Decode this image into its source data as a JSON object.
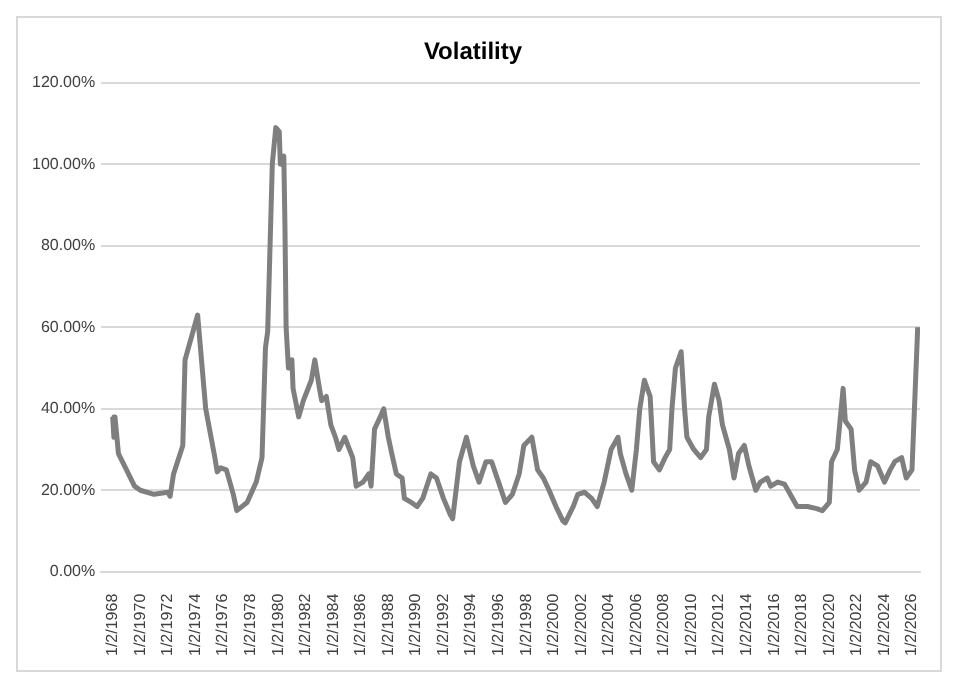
{
  "chart_data": {
    "type": "line",
    "title": "Volatility",
    "x": [
      "1968-01",
      "1968-02",
      "1968-03",
      "1968-06",
      "1969-01",
      "1969-08",
      "1970-01",
      "1971-01",
      "1972-01",
      "1972-03",
      "1972-06",
      "1973-02",
      "1973-04",
      "1974-03",
      "1974-10",
      "1975-06",
      "1975-08",
      "1975-11",
      "1976-04",
      "1976-10",
      "1977-01",
      "1977-10",
      "1978-06",
      "1978-11",
      "1979-02",
      "1979-04",
      "1979-08",
      "1979-11",
      "1980-02",
      "1980-03",
      "1980-06",
      "1980-07",
      "1980-08",
      "1980-10",
      "1981-01",
      "1981-02",
      "1981-07",
      "1981-11",
      "1982-06",
      "1982-09",
      "1983-01",
      "1983-03",
      "1983-07",
      "1983-11",
      "1984-03",
      "1984-06",
      "1984-11",
      "1985-06",
      "1985-09",
      "1986-03",
      "1986-08",
      "1986-10",
      "1987-01",
      "1987-06",
      "1987-09",
      "1988-01",
      "1988-04",
      "1988-08",
      "1989-01",
      "1989-03",
      "1989-09",
      "1990-02",
      "1990-07",
      "1991-02",
      "1991-07",
      "1992-01",
      "1992-07",
      "1992-09",
      "1993-03",
      "1993-09",
      "1994-03",
      "1994-08",
      "1995-02",
      "1995-07",
      "1996-01",
      "1996-07",
      "1997-01",
      "1997-07",
      "1997-11",
      "1998-06",
      "1998-11",
      "1999-04",
      "1999-09",
      "2000-03",
      "2000-09",
      "2000-11",
      "2001-06",
      "2001-10",
      "2002-04",
      "2002-10",
      "2003-03",
      "2003-09",
      "2004-03",
      "2004-09",
      "2004-11",
      "2005-04",
      "2005-09",
      "2006-01",
      "2006-04",
      "2006-08",
      "2007-01",
      "2007-04",
      "2007-09",
      "2008-02",
      "2008-06",
      "2008-08",
      "2008-11",
      "2009-04",
      "2009-07",
      "2009-09",
      "2010-03",
      "2010-09",
      "2011-02",
      "2011-04",
      "2011-09",
      "2012-01",
      "2012-04",
      "2012-10",
      "2013-02",
      "2013-06",
      "2013-11",
      "2014-03",
      "2014-09",
      "2015-01",
      "2015-07",
      "2015-10",
      "2016-04",
      "2016-10",
      "2017-03",
      "2017-09",
      "2018-06",
      "2019-02",
      "2019-07",
      "2020-01",
      "2020-03",
      "2020-08",
      "2021-01",
      "2021-03",
      "2021-08",
      "2021-11",
      "2022-03",
      "2022-09",
      "2023-01",
      "2023-07",
      "2024-01",
      "2024-06",
      "2024-10",
      "2025-04",
      "2025-08",
      "2026-01",
      "2026-06"
    ],
    "series": [
      {
        "color": "#7f7f7f",
        "values": [
          38,
          33,
          38,
          29,
          25,
          21,
          20,
          19,
          19.5,
          18.5,
          24,
          31,
          52,
          63,
          40,
          28,
          24.5,
          25.5,
          25,
          19,
          15,
          17,
          22,
          28,
          55,
          59,
          100,
          109,
          108,
          100,
          102,
          85,
          60,
          50,
          52,
          45,
          38,
          42,
          47,
          52,
          45,
          42,
          43,
          36,
          33,
          30,
          33,
          28,
          21,
          22,
          24,
          21,
          35,
          38,
          40,
          33,
          29,
          24,
          23,
          18,
          17,
          16,
          18,
          24,
          23,
          18,
          14,
          13,
          27,
          33,
          26,
          22,
          27,
          27,
          22,
          17,
          19,
          24,
          31,
          33,
          25,
          23,
          20,
          16,
          12.5,
          12,
          16,
          19,
          19.5,
          18,
          16,
          22,
          30,
          33,
          29,
          24,
          20,
          30,
          40,
          47,
          43,
          27,
          25,
          28,
          30,
          40,
          50,
          54,
          40,
          33,
          30,
          28,
          30,
          38,
          46,
          42,
          36,
          30,
          23,
          29,
          31,
          26,
          20,
          22,
          23,
          21,
          22,
          21.5,
          19,
          16,
          16,
          15.5,
          15,
          17,
          27,
          30,
          45,
          37,
          35,
          25,
          20,
          22,
          27,
          26,
          22,
          25,
          27,
          28,
          23,
          25,
          60
        ]
      }
    ],
    "xlim": [
      "1967-03",
      "2026-08"
    ],
    "xticks": [
      {
        "value": "1968-01-02",
        "label": "1/2/1968"
      },
      {
        "value": "1970-01-02",
        "label": "1/2/1970"
      },
      {
        "value": "1972-01-02",
        "label": "1/2/1972"
      },
      {
        "value": "1974-01-02",
        "label": "1/2/1974"
      },
      {
        "value": "1976-01-02",
        "label": "1/2/1976"
      },
      {
        "value": "1978-01-02",
        "label": "1/2/1978"
      },
      {
        "value": "1980-01-02",
        "label": "1/2/1980"
      },
      {
        "value": "1982-01-02",
        "label": "1/2/1982"
      },
      {
        "value": "1984-01-02",
        "label": "1/2/1984"
      },
      {
        "value": "1986-01-02",
        "label": "1/2/1986"
      },
      {
        "value": "1988-01-02",
        "label": "1/2/1988"
      },
      {
        "value": "1990-01-02",
        "label": "1/2/1990"
      },
      {
        "value": "1992-01-02",
        "label": "1/2/1992"
      },
      {
        "value": "1994-01-02",
        "label": "1/2/1994"
      },
      {
        "value": "1996-01-02",
        "label": "1/2/1996"
      },
      {
        "value": "1998-01-02",
        "label": "1/2/1998"
      },
      {
        "value": "2000-01-02",
        "label": "1/2/2000"
      },
      {
        "value": "2002-01-02",
        "label": "1/2/2002"
      },
      {
        "value": "2004-01-02",
        "label": "1/2/2004"
      },
      {
        "value": "2006-01-02",
        "label": "1/2/2006"
      },
      {
        "value": "2008-01-02",
        "label": "1/2/2008"
      },
      {
        "value": "2010-01-02",
        "label": "1/2/2010"
      },
      {
        "value": "2012-01-02",
        "label": "1/2/2012"
      },
      {
        "value": "2014-01-02",
        "label": "1/2/2014"
      },
      {
        "value": "2016-01-02",
        "label": "1/2/2016"
      },
      {
        "value": "2018-01-02",
        "label": "1/2/2018"
      },
      {
        "value": "2020-01-02",
        "label": "1/2/2020"
      },
      {
        "value": "2022-01-02",
        "label": "1/2/2022"
      },
      {
        "value": "2024-01-02",
        "label": "1/2/2024"
      },
      {
        "value": "2026-01-02",
        "label": "1/2/2026"
      }
    ],
    "ylim": [
      0,
      120
    ],
    "yticks": [
      {
        "value": 0,
        "label": "0.00%"
      },
      {
        "value": 20,
        "label": "20.00%"
      },
      {
        "value": 40,
        "label": "40.00%"
      },
      {
        "value": 60,
        "label": "60.00%"
      },
      {
        "value": 80,
        "label": "80.00%"
      },
      {
        "value": 100,
        "label": "100.00%"
      },
      {
        "value": 120,
        "label": "120.00%"
      }
    ],
    "grid": "y",
    "legend": false,
    "marker": "none",
    "line_style": "solid"
  }
}
